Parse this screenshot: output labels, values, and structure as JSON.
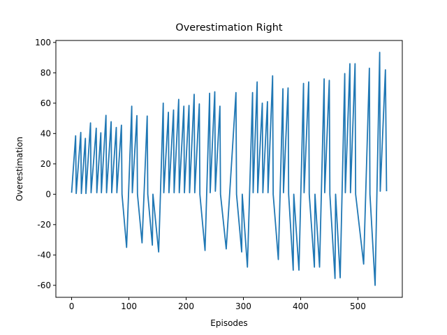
{
  "chart_data": {
    "type": "line",
    "title": "Overestimation Right",
    "xlabel": "Episodes",
    "ylabel": "Overestimation",
    "x": [
      0,
      7,
      8,
      16,
      17,
      24,
      25,
      33,
      34,
      43,
      44,
      51,
      52,
      60,
      61,
      69,
      70,
      78,
      79,
      87,
      88,
      96,
      105,
      106,
      114,
      115,
      123,
      132,
      133,
      141,
      142,
      152,
      160,
      161,
      169,
      170,
      178,
      179,
      187,
      188,
      196,
      197,
      205,
      206,
      214,
      215,
      223,
      224,
      233,
      241,
      242,
      250,
      251,
      259,
      260,
      270,
      287,
      288,
      297,
      298,
      307,
      316,
      317,
      324,
      325,
      333,
      334,
      342,
      343,
      351,
      352,
      361,
      369,
      370,
      378,
      379,
      387,
      388,
      397,
      405,
      406,
      414,
      415,
      424,
      425,
      433,
      441,
      442,
      450,
      451,
      460,
      461,
      469,
      477,
      478,
      486,
      487,
      495,
      496,
      510,
      520,
      521,
      530,
      538,
      539,
      548,
      550
    ],
    "series": [
      {
        "name": "Overestimation Right",
        "color": "#1f77b4",
        "values": [
          1,
          38.5,
          0.5,
          40.7,
          0.5,
          36.8,
          0.5,
          47,
          1,
          43.5,
          1,
          40.5,
          1,
          52,
          1,
          47.8,
          1,
          44,
          1,
          45.5,
          0,
          -35,
          58,
          1,
          51.8,
          0,
          -32,
          51.5,
          0,
          -33.5,
          0,
          -38,
          60,
          1,
          54,
          1,
          55.5,
          1,
          62.5,
          1,
          58,
          1,
          58.5,
          1,
          65.8,
          1,
          59.5,
          0,
          -37,
          66.5,
          1,
          67.5,
          2,
          58,
          0,
          -36,
          67,
          0,
          -38,
          0,
          -48,
          67,
          1,
          74,
          1,
          60,
          1,
          61,
          1,
          78,
          0,
          -43,
          69.5,
          1,
          70,
          0,
          -50,
          0,
          -50,
          73,
          1,
          74,
          0,
          -48,
          0,
          -48,
          76,
          1,
          75,
          0,
          -55.5,
          0,
          -55,
          79.5,
          1,
          86,
          1,
          86,
          0,
          -46,
          83,
          0,
          -60,
          93.5,
          2,
          82,
          2
        ]
      }
    ],
    "xlim": [
      -27.5,
      577.5
    ],
    "ylim": [
      -67.9,
      101.3
    ],
    "xticks": [
      0,
      100,
      200,
      300,
      400,
      500
    ],
    "yticks": [
      -60,
      -40,
      -20,
      0,
      20,
      40,
      60,
      80,
      100
    ]
  }
}
